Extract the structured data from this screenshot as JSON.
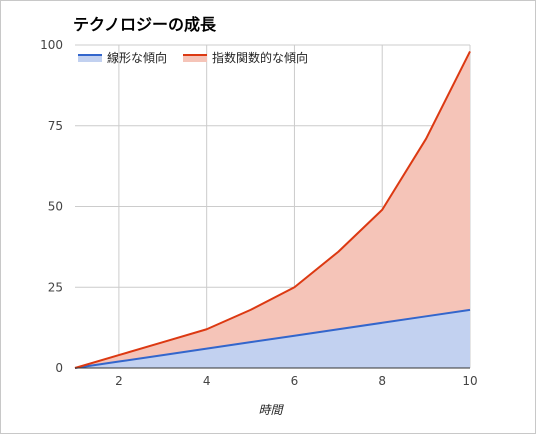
{
  "chart_data": {
    "type": "area",
    "title": "テクノロジーの成長",
    "xlabel": "時間",
    "ylabel": "",
    "x": [
      1,
      2,
      3,
      4,
      5,
      6,
      7,
      8,
      9,
      10
    ],
    "series": [
      {
        "name": "線形な傾向",
        "color": "#3366cc",
        "fill": "#c2d1f0",
        "values": [
          0,
          2,
          4,
          6,
          8,
          10,
          12,
          14,
          16,
          18
        ]
      },
      {
        "name": "指数関数的な傾向",
        "color": "#dc3912",
        "fill": "#f5c4b8",
        "values": [
          0,
          4,
          8,
          12,
          18,
          25,
          36,
          49,
          71,
          98
        ]
      }
    ],
    "xlim": [
      1,
      10
    ],
    "ylim": [
      0,
      100
    ],
    "x_ticks": [
      2,
      4,
      6,
      8,
      10
    ],
    "y_ticks": [
      0,
      25,
      50,
      75,
      100
    ],
    "grid": true,
    "legend_position": "top-left"
  }
}
